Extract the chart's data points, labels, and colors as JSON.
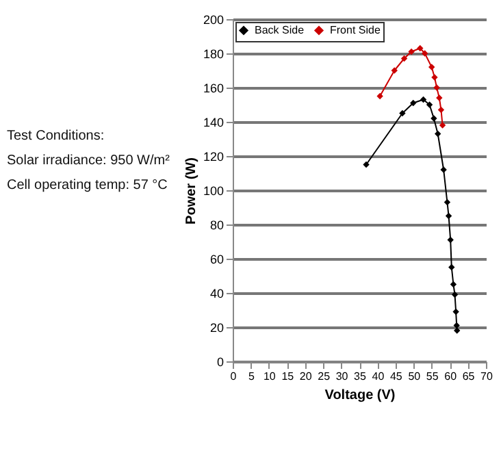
{
  "chart_data": {
    "type": "line",
    "xlabel": "Voltage (V)",
    "ylabel": "Power (W)",
    "xlim": [
      0,
      70
    ],
    "xticks": [
      0,
      5,
      10,
      15,
      20,
      25,
      30,
      35,
      40,
      45,
      50,
      55,
      60,
      65,
      70
    ],
    "ylim": [
      0,
      200
    ],
    "yticks": [
      0,
      20,
      40,
      60,
      80,
      100,
      120,
      140,
      160,
      180,
      200
    ],
    "grid": "y",
    "legend": "top left",
    "marker": "diamond",
    "line_style": "solid",
    "annotations": [
      "Test Conditions:",
      "Solar irradiance: 950 W/m²",
      "Cell operating temp: 57 °C"
    ],
    "series": [
      {
        "name": "Back Side",
        "color": "#000000",
        "x": [
          36.9,
          46.9,
          49.9,
          52.7,
          54.4,
          55.6,
          56.7,
          58.3,
          59.3,
          59.7,
          60.2,
          60.5,
          61.0,
          61.4,
          61.7,
          61.9,
          62.0
        ],
        "values": [
          115,
          145,
          151,
          153,
          150,
          142,
          133,
          112,
          93,
          85,
          71,
          55,
          45,
          39,
          29,
          21,
          18
        ]
      },
      {
        "name": "Front Side",
        "color": "#cc0000",
        "x": [
          40.7,
          44.7,
          47.4,
          49.4,
          51.8,
          53.1,
          55.0,
          55.8,
          56.4,
          57.1,
          57.6,
          58.0
        ],
        "values": [
          155,
          170,
          177,
          181,
          183,
          180,
          172,
          166,
          160,
          154,
          147,
          138
        ]
      }
    ]
  }
}
